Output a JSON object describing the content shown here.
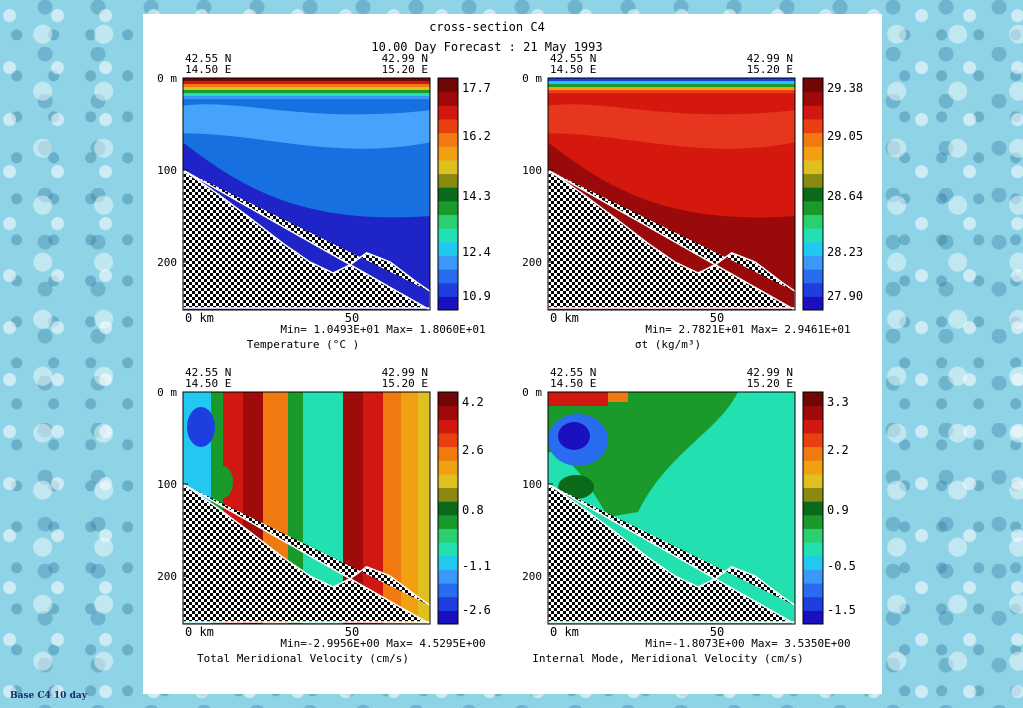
{
  "figure": {
    "title": "cross-section C4",
    "subtitle": "10.00 Day Forecast : 21 May 1993"
  },
  "footer": {
    "text": "Base C4 10 day"
  },
  "coords": {
    "left_lat": "42.55 N",
    "left_lon": "14.50 E",
    "right_lat": "42.99 N",
    "right_lon": "15.20 E"
  },
  "axes": {
    "y_ticks": [
      "0 m",
      "100",
      "200"
    ],
    "x_ticks": [
      "0 km",
      "50"
    ]
  },
  "chart_data": [
    {
      "type": "heatmap",
      "title": "Temperature (°C )",
      "range_text": "Min= 1.0493E+01   Max= 1.8060E+01",
      "min": 10.493,
      "max": 18.06,
      "xlabel": "km",
      "ylabel": "m",
      "x_ticks": [
        0,
        50
      ],
      "y_ticks": [
        0,
        100,
        200
      ],
      "colorbar_labels": [
        "17.7",
        "16.2",
        "14.3",
        "12.4",
        "10.9"
      ],
      "colors": [
        "#1e24c8",
        "#1670e0",
        "#4aa8ff",
        "#e02010",
        "#9a0a0a"
      ]
    },
    {
      "type": "heatmap",
      "title": "σt (kg/m³)",
      "range_text": "Min= 2.7821E+01   Max= 2.9461E+01",
      "min": 27.821,
      "max": 29.461,
      "xlabel": "km",
      "ylabel": "m",
      "x_ticks": [
        0,
        50
      ],
      "y_ticks": [
        0,
        100,
        200
      ],
      "colorbar_labels": [
        "29.38",
        "29.05",
        "28.64",
        "28.23",
        "27.90"
      ],
      "colors": [
        "#9a0a0a",
        "#d4180e",
        "#e83a20",
        "#0a8a30",
        "#1e24c8"
      ]
    },
    {
      "type": "heatmap",
      "title": "Total Meridional Velocity (cm/s)",
      "range_text": "Min=-2.9956E+00   Max= 4.5295E+00",
      "min": -2.9956,
      "max": 4.5295,
      "xlabel": "km",
      "ylabel": "m",
      "x_ticks": [
        0,
        50
      ],
      "y_ticks": [
        0,
        100,
        200
      ],
      "colorbar_labels": [
        "4.2",
        "2.6",
        "0.8",
        "-1.1",
        "-2.6"
      ],
      "colors": [
        "#22e0b0",
        "#1a9a2a",
        "#d01810",
        "#f0a010",
        "#1e24c8"
      ]
    },
    {
      "type": "heatmap",
      "title": "Internal Mode, Meridional Velocity (cm/s)",
      "range_text": "Min=-1.8073E+00   Max= 3.5350E+00",
      "min": -1.8073,
      "max": 3.535,
      "xlabel": "km",
      "ylabel": "m",
      "x_ticks": [
        0,
        50
      ],
      "y_ticks": [
        0,
        100,
        200
      ],
      "colorbar_labels": [
        "3.3",
        "2.2",
        "0.9",
        "-0.5",
        "-1.5"
      ],
      "colors": [
        "#22e0b0",
        "#1a9a2a",
        "#1e24c8",
        "#d01810",
        "#f0a010"
      ]
    }
  ],
  "colorbar_palette": [
    "#1a10c0",
    "#1e3ee0",
    "#2a6cf0",
    "#3a98f8",
    "#22c8f0",
    "#22e0b0",
    "#2ad070",
    "#1a9a2a",
    "#0a6a1a",
    "#8a8a10",
    "#e0c020",
    "#f0a010",
    "#f07a10",
    "#e84010",
    "#d01810",
    "#a00a0a",
    "#700606"
  ]
}
